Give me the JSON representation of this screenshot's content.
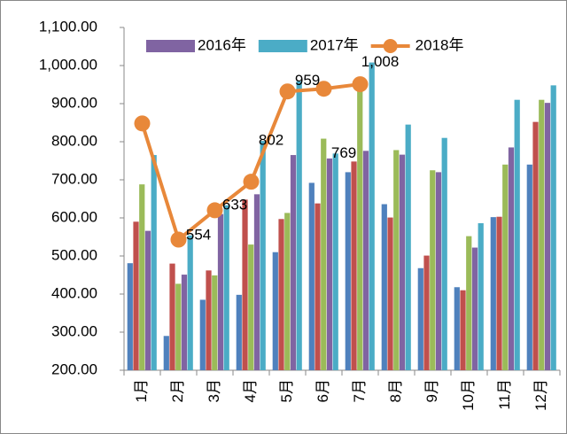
{
  "chart_data": {
    "type": "bar",
    "categories": [
      "1月",
      "2月",
      "3月",
      "4月",
      "5月",
      "6月",
      "7月",
      "8月",
      "9月",
      "10月",
      "11月",
      "12月"
    ],
    "series": [
      {
        "color": "#4f81bd",
        "values": [
          481,
          290,
          385,
          398,
          510,
          692,
          720,
          636,
          468,
          418,
          602,
          740
        ]
      },
      {
        "color": "#c0504d",
        "values": [
          590,
          480,
          462,
          648,
          597,
          638,
          748,
          601,
          501,
          410,
          603,
          852
        ]
      },
      {
        "color": "#9bbb59",
        "values": [
          688,
          427,
          449,
          530,
          613,
          808,
          955,
          778,
          725,
          552,
          740,
          910
        ]
      },
      {
        "name": "2016年",
        "color": "#8064a2",
        "values": [
          566,
          451,
          610,
          662,
          765,
          756,
          776,
          766,
          720,
          522,
          785,
          902
        ]
      },
      {
        "name": "2017年",
        "color": "#4bacc6",
        "values": [
          765,
          554,
          633,
          802,
          959,
          769,
          1008,
          845,
          810,
          586,
          910,
          948
        ],
        "value_labels": [
          null,
          "554",
          "633",
          "802",
          "959",
          "769",
          "1,008",
          null,
          null,
          null,
          null,
          null
        ]
      },
      {
        "name": "2018年",
        "type": "line",
        "color": "#e8883a",
        "values": [
          848,
          543,
          620,
          695,
          932,
          939,
          951,
          null,
          null,
          null,
          null,
          null
        ]
      }
    ],
    "ylim": [
      200,
      1100
    ],
    "yticks": [
      {
        "value": 200,
        "label": "200.00"
      },
      {
        "value": 300,
        "label": "300.00"
      },
      {
        "value": 400,
        "label": "400.00"
      },
      {
        "value": 500,
        "label": "500.00"
      },
      {
        "value": 600,
        "label": "600.00"
      },
      {
        "value": 700,
        "label": "700.00"
      },
      {
        "value": 800,
        "label": "800.00"
      },
      {
        "value": 900,
        "label": "900.00"
      },
      {
        "value": 1000,
        "label": "1,000.00"
      },
      {
        "value": 1100,
        "label": "1,100.00"
      }
    ],
    "grid": false
  }
}
